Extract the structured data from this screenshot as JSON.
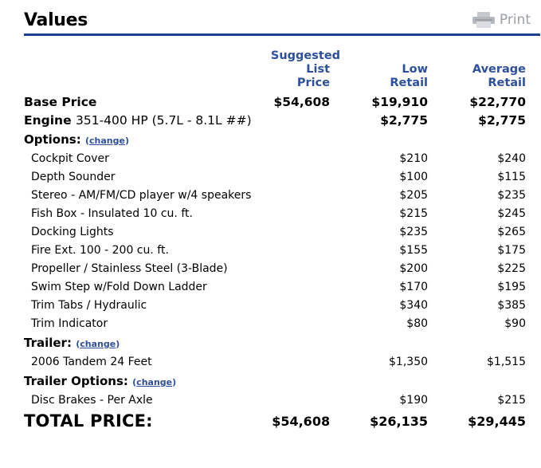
{
  "header": {
    "title": "Values",
    "print_label": "Print",
    "print_icon": "printer-icon"
  },
  "columns": {
    "list": [
      "Suggested",
      "List Price"
    ],
    "low": [
      "Low",
      "Retail"
    ],
    "avg": [
      "Average",
      "Retail"
    ]
  },
  "base": {
    "label": "Base Price",
    "list": "$54,608",
    "low": "$19,910",
    "avg": "$22,770"
  },
  "engine": {
    "label": "Engine",
    "detail": "351-400 HP (5.7L - 8.1L ##)",
    "low": "$2,775",
    "avg": "$2,775"
  },
  "options_section": {
    "label": "Options:",
    "change": "change"
  },
  "options": [
    {
      "label": "Cockpit Cover",
      "low": "$210",
      "avg": "$240"
    },
    {
      "label": "Depth Sounder",
      "low": "$100",
      "avg": "$115"
    },
    {
      "label": "Stereo - AM/FM/CD player w/4 speakers",
      "low": "$205",
      "avg": "$235"
    },
    {
      "label": "Fish Box - Insulated 10 cu. ft.",
      "low": "$215",
      "avg": "$245"
    },
    {
      "label": "Docking Lights",
      "low": "$235",
      "avg": "$265"
    },
    {
      "label": "Fire Ext. 100 - 200 cu. ft.",
      "low": "$155",
      "avg": "$175"
    },
    {
      "label": "Propeller / Stainless Steel (3-Blade)",
      "low": "$200",
      "avg": "$225"
    },
    {
      "label": "Swim Step w/Fold Down Ladder",
      "low": "$170",
      "avg": "$195"
    },
    {
      "label": "Trim Tabs / Hydraulic",
      "low": "$340",
      "avg": "$385"
    },
    {
      "label": "Trim Indicator",
      "low": "$80",
      "avg": "$90"
    }
  ],
  "trailer_section": {
    "label": "Trailer:",
    "change": "change"
  },
  "trailer": {
    "label": "2006 Tandem 24 Feet",
    "low": "$1,350",
    "avg": "$1,515"
  },
  "trailer_options_section": {
    "label": "Trailer Options:",
    "change": "change"
  },
  "trailer_options": [
    {
      "label": "Disc Brakes - Per Axle",
      "low": "$190",
      "avg": "$215"
    }
  ],
  "total": {
    "label": "TOTAL PRICE:",
    "list": "$54,608",
    "low": "$26,135",
    "avg": "$29,445"
  },
  "colors": {
    "accent": "#1c3f93",
    "link": "#2e4f9a",
    "muted": "#9aa0a6"
  }
}
